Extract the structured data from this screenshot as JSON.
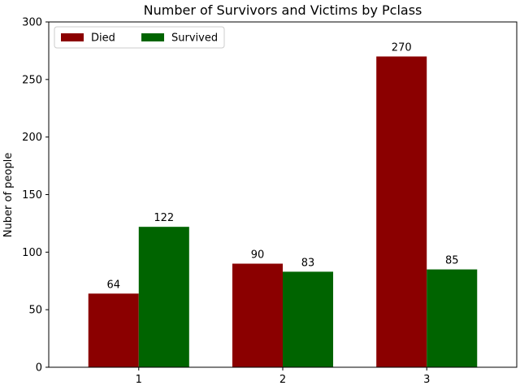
{
  "chart_data": {
    "type": "bar",
    "title": "Number of Survivors and Victims by Pclass",
    "xlabel": "",
    "ylabel": "Nuber of people",
    "categories": [
      "1",
      "2",
      "3"
    ],
    "series": [
      {
        "name": "Died",
        "values": [
          64,
          90,
          270
        ],
        "color": "#8b0000"
      },
      {
        "name": "Survived",
        "values": [
          122,
          83,
          85
        ],
        "color": "#006400"
      }
    ],
    "ylim": [
      0,
      300
    ],
    "yticks": [
      0,
      50,
      100,
      150,
      200,
      250,
      300
    ],
    "grid": false,
    "legend_position": "top-left",
    "legend_columns": 2,
    "data_labels": true
  }
}
